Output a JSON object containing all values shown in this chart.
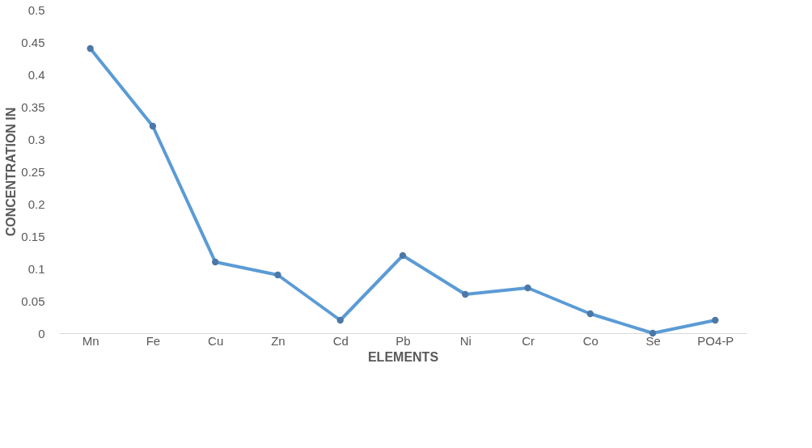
{
  "chart_data": {
    "type": "line",
    "xlabel": "ELEMENTS",
    "ylabel": "CONCENTRATION IN",
    "categories": [
      "Mn",
      "Fe",
      "Cu",
      "Zn",
      "Cd",
      "Pb",
      "Ni",
      "Cr",
      "Co",
      "Se",
      "PO4-P"
    ],
    "series": [
      {
        "color": "#5b9bd5",
        "values": [
          0.44,
          0.32,
          0.11,
          0.09,
          0.02,
          0.12,
          0.06,
          0.07,
          0.03,
          0.0,
          0.02
        ]
      }
    ],
    "ylim": [
      0,
      0.5
    ],
    "yticks": [
      0,
      0.05,
      0.1,
      0.15,
      0.2,
      0.25,
      0.3,
      0.35,
      0.4,
      0.45,
      0.5
    ],
    "grid": false,
    "marker": "circle",
    "line_style": "solid"
  }
}
